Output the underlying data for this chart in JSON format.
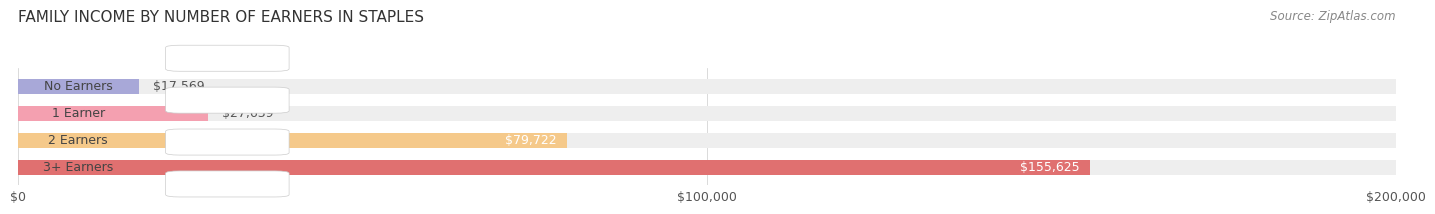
{
  "title": "FAMILY INCOME BY NUMBER OF EARNERS IN STAPLES",
  "source": "Source: ZipAtlas.com",
  "categories": [
    "No Earners",
    "1 Earner",
    "2 Earners",
    "3+ Earners"
  ],
  "values": [
    17569,
    27639,
    79722,
    155625
  ],
  "bar_colors": [
    "#a8a8d8",
    "#f4a0b0",
    "#f5c98a",
    "#e07070"
  ],
  "background_color": "#ffffff",
  "bar_bg_color": "#eeeeee",
  "xlim": [
    0,
    200000
  ],
  "xticks": [
    0,
    100000,
    200000
  ],
  "xtick_labels": [
    "$0",
    "$100,000",
    "$200,000"
  ],
  "value_labels": [
    "$17,569",
    "$27,639",
    "$79,722",
    "$155,625"
  ],
  "bar_height": 0.55,
  "title_fontsize": 11,
  "source_fontsize": 8.5,
  "label_fontsize": 9,
  "tick_fontsize": 9
}
